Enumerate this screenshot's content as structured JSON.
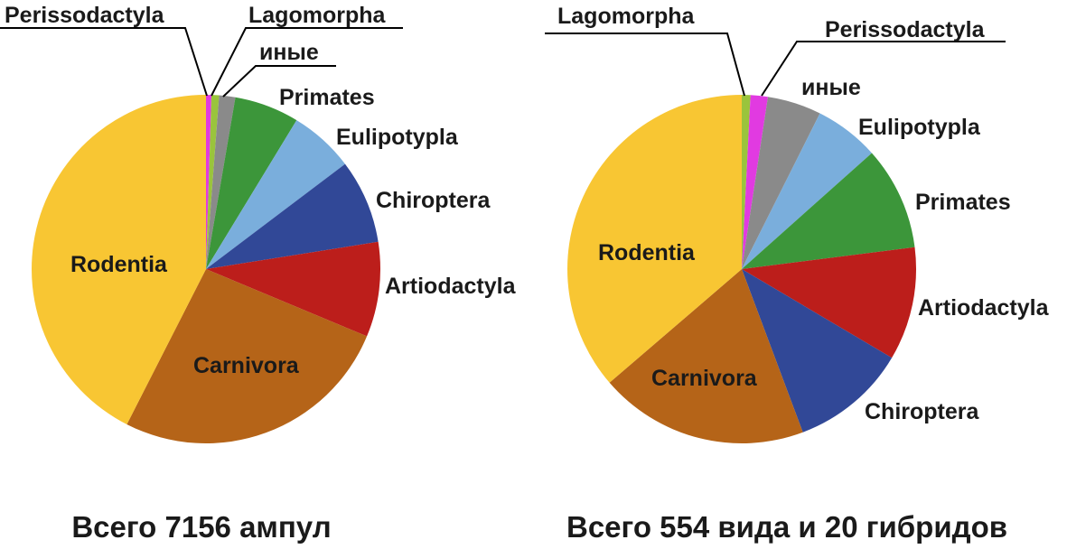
{
  "chart_data": [
    {
      "type": "pie",
      "caption": "Всего 7156 ампул",
      "start": "12 o'clock",
      "direction": "clockwise",
      "slices": [
        {
          "label": "Perissodactyla",
          "value": 0.5,
          "color": "#e13ae1"
        },
        {
          "label": "Lagomorpha",
          "value": 0.7,
          "color": "#9ac43c"
        },
        {
          "label": "иные",
          "value": 1.5,
          "color": "#8a8a8a"
        },
        {
          "label": "Primates",
          "value": 6.0,
          "color": "#3c963a"
        },
        {
          "label": "Eulipotypla",
          "value": 6.0,
          "color": "#7aaedc"
        },
        {
          "label": "Chiroptera",
          "value": 7.8,
          "color": "#314897"
        },
        {
          "label": "Artiodactyla",
          "value": 8.8,
          "color": "#bc1e1b"
        },
        {
          "label": "Carnivora",
          "value": 26.2,
          "color": "#b56418"
        },
        {
          "label": "Rodentia",
          "value": 42.5,
          "color": "#f8c633"
        }
      ]
    },
    {
      "type": "pie",
      "caption": "Всего 554 вида и 20 гибридов",
      "start": "12 o'clock",
      "direction": "clockwise",
      "slices": [
        {
          "label": "Lagomorpha",
          "value": 0.8,
          "color": "#9ac43c"
        },
        {
          "label": "Perissodactyla",
          "value": 1.6,
          "color": "#e13ae1"
        },
        {
          "label": "иные",
          "value": 5.0,
          "color": "#8a8a8a"
        },
        {
          "label": "Eulipotypla",
          "value": 6.0,
          "color": "#7aaedc"
        },
        {
          "label": "Primates",
          "value": 9.6,
          "color": "#3c963a"
        },
        {
          "label": "Artiodactyla",
          "value": 10.5,
          "color": "#bc1e1b"
        },
        {
          "label": "Chiroptera",
          "value": 10.8,
          "color": "#314897"
        },
        {
          "label": "Carnivora",
          "value": 19.4,
          "color": "#b56418"
        },
        {
          "label": "Rodentia",
          "value": 36.3,
          "color": "#f8c633"
        }
      ]
    }
  ]
}
